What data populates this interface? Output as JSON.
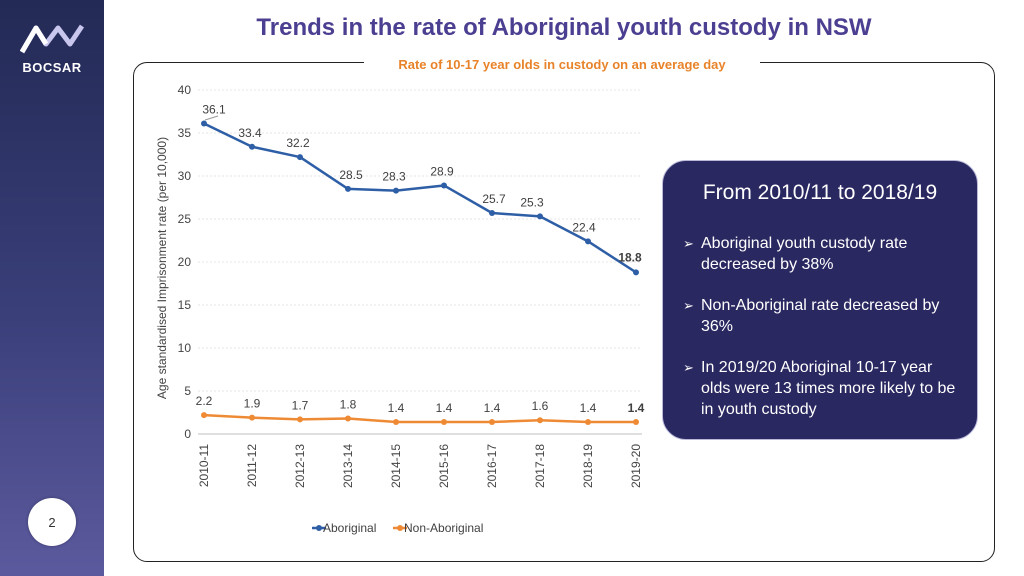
{
  "header": {
    "title": "Trends in the rate of Aboriginal youth custody in NSW",
    "logo_text": "BOCSAR",
    "page_number": "2"
  },
  "callout": {
    "heading": "From 2010/11 to 2018/19",
    "bullet_glyph": "➢",
    "bullets": [
      "Aboriginal youth custody rate decreased by 38%",
      "Non-Aboriginal rate decreased by 36%",
      "In 2019/20 Aboriginal 10-17 year olds were 13 times more likely to be in youth custody"
    ]
  },
  "colors": {
    "title": "#4b3f92",
    "subtitle": "#e8832a",
    "aboriginal": "#2e5fa6",
    "non_aboriginal": "#ef8a34"
  },
  "chart_data": {
    "type": "line",
    "title": "Rate of 10-17 year olds in custody on an average day",
    "ylabel": "Age standardised Imprisonment rate  (per 10,000)",
    "xlabel": "",
    "ylim": [
      0,
      40
    ],
    "yticks": [
      0,
      5,
      10,
      15,
      20,
      25,
      30,
      35,
      40
    ],
    "grid": true,
    "legend_position": "bottom",
    "categories": [
      "2010-11",
      "2011-12",
      "2012-13",
      "2013-14",
      "2014-15",
      "2015-16",
      "2016-17",
      "2017-18",
      "2018-19",
      "2019-20"
    ],
    "series": [
      {
        "name": "Aboriginal",
        "color": "#2e5fa6",
        "values": [
          36.1,
          33.4,
          32.2,
          28.5,
          28.3,
          28.9,
          25.7,
          25.3,
          22.4,
          18.8
        ],
        "labels": [
          "36.1",
          "33.4",
          "32.2",
          "28.5",
          "28.3",
          "28.9",
          "25.7",
          "25.3",
          "22.4",
          "18.8"
        ]
      },
      {
        "name": "Non-Aboriginal",
        "color": "#ef8a34",
        "values": [
          2.2,
          1.9,
          1.7,
          1.8,
          1.4,
          1.4,
          1.4,
          1.6,
          1.4,
          1.4
        ],
        "labels": [
          "2.2",
          "1.9",
          "1.7",
          "1.8",
          "1.4",
          "1.4",
          "1.4",
          "1.6",
          "1.4",
          "1.4"
        ]
      }
    ]
  }
}
